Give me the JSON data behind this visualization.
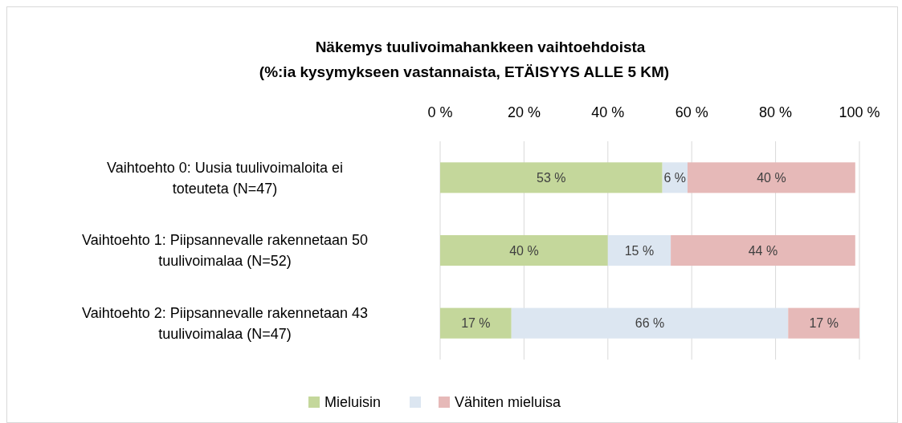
{
  "chart_data": {
    "type": "bar",
    "orientation": "horizontal",
    "stacked": true,
    "title": "Näkemys tuulivoimahankkeen vaihtoehdoista",
    "subtitle": "(%:ia kysymykseen vastannaista, ETÄISYYS ALLE 5 KM)",
    "categories": [
      "Vaihtoehto 0: Uusia tuulivoimaloita ei toteuteta (N=47)",
      "Vaihtoehto 1: Piipsannevalle rakennetaan 50 tuulivoimalaa (N=52)",
      "Vaihtoehto 2: Piipsannevalle rakennetaan 43 tuulivoimalaa (N=47)"
    ],
    "series": [
      {
        "name": "Mieluisin",
        "color": "#c4d79b",
        "values": [
          53,
          40,
          17
        ],
        "value_labels": [
          "53 %",
          "40 %",
          "17 %"
        ]
      },
      {
        "color": "#dce6f1",
        "values": [
          6,
          15,
          66
        ],
        "value_labels": [
          "6 %",
          "15 %",
          "66 %"
        ]
      },
      {
        "name": "Vähiten mieluisa",
        "color": "#e6b9b8",
        "values": [
          40,
          44,
          17
        ],
        "value_labels": [
          "40 %",
          "44 %",
          "17 %"
        ]
      }
    ],
    "xlim": [
      0,
      100
    ],
    "xticks": [
      {
        "value": 0,
        "label": "0 %"
      },
      {
        "value": 20,
        "label": "20 %"
      },
      {
        "value": 40,
        "label": "40 %"
      },
      {
        "value": 60,
        "label": "60 %"
      },
      {
        "value": 80,
        "label": "80 %"
      },
      {
        "value": 100,
        "label": "100 %"
      }
    ],
    "grid": "x",
    "legend": "bottom"
  }
}
